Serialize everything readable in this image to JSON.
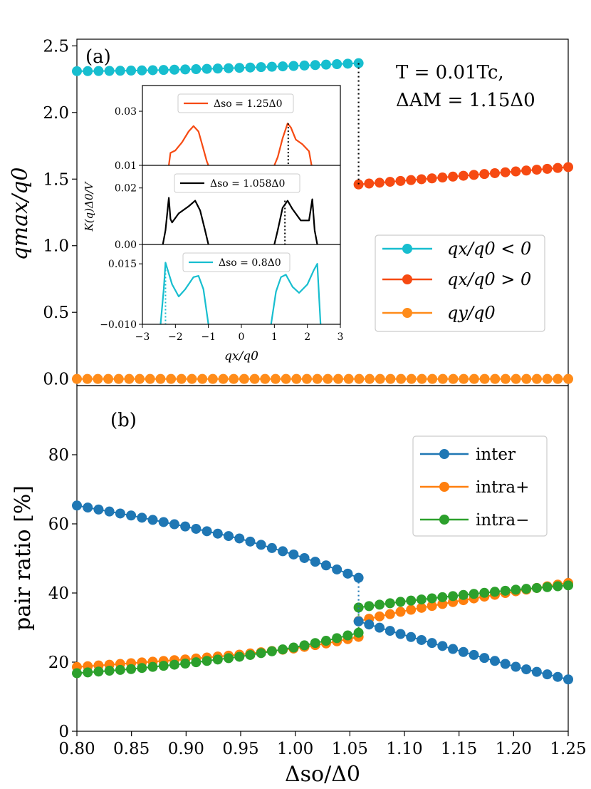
{
  "colors": {
    "cyan": "#17becf",
    "orange_red": "#f64a12",
    "orange": "#ff8c1a",
    "blue": "#1f77b4",
    "mpl_orange": "#ff7f0e",
    "green": "#2ca02c",
    "black": "#000000"
  },
  "figure": {
    "xlabel": "Δso/Δ0",
    "xticks": [
      "0.80",
      "0.85",
      "0.90",
      "0.95",
      "1.00",
      "1.05",
      "1.10",
      "1.15",
      "1.20",
      "1.25"
    ]
  },
  "chart_data": [
    {
      "panel": "(a)",
      "type": "scatter",
      "ylabel": "qmax/q0",
      "xlim": [
        0.8,
        1.25
      ],
      "ylim": [
        -0.05,
        2.55
      ],
      "yticks": [
        "0.0",
        "0.5",
        "1.0",
        "1.5",
        "2.0",
        "2.5"
      ],
      "annotation_line1": "T = 0.01Tc,",
      "annotation_line2": "ΔAM = 1.15Δ0",
      "legend_position": "right",
      "series": [
        {
          "name": "qx/q0 < 0",
          "color": "cyan",
          "x_range": [
            0.8,
            1.058
          ],
          "y_start": 2.31,
          "y_end": 2.37
        },
        {
          "name": "qx/q0 > 0",
          "color": "orange_red",
          "x_range": [
            1.058,
            1.25
          ],
          "y_start": 1.46,
          "y_end": 1.59
        },
        {
          "name": "qy/q0",
          "color": "orange",
          "x_range": [
            0.8,
            1.25
          ],
          "y_start": 0.0,
          "y_end": 0.0
        }
      ],
      "jump": {
        "x": 1.058,
        "y_from": 2.37,
        "y_to": 1.46
      }
    },
    {
      "panel": "(b)",
      "type": "scatter",
      "ylabel": "pair ratio [%]",
      "xlim": [
        0.8,
        1.25
      ],
      "ylim": [
        0,
        100
      ],
      "yticks": [
        "0",
        "20",
        "40",
        "60",
        "80"
      ],
      "legend_position": "upper right",
      "series": [
        {
          "name": "inter",
          "color": "blue",
          "points_left": [
            [
              0.8,
              65.3
            ],
            [
              0.85,
              62.4
            ],
            [
              0.9,
              59.2
            ],
            [
              0.95,
              55.7
            ],
            [
              1.0,
              51.0
            ],
            [
              1.03,
              47.8
            ],
            [
              1.058,
              44.4
            ]
          ],
          "points_right": [
            [
              1.058,
              31.8
            ],
            [
              1.1,
              27.8
            ],
            [
              1.15,
              23.3
            ],
            [
              1.2,
              18.8
            ],
            [
              1.25,
              15.0
            ]
          ]
        },
        {
          "name": "intra+",
          "color": "mpl_orange",
          "points_left": [
            [
              0.8,
              18.6
            ],
            [
              0.85,
              19.7
            ],
            [
              0.9,
              20.8
            ],
            [
              0.95,
              22.2
            ],
            [
              1.0,
              24.0
            ],
            [
              1.03,
              25.5
            ],
            [
              1.058,
              27.3
            ]
          ],
          "points_right": [
            [
              1.058,
              31.9
            ],
            [
              1.1,
              34.8
            ],
            [
              1.15,
              37.7
            ],
            [
              1.2,
              40.4
            ],
            [
              1.25,
              42.9
            ]
          ]
        },
        {
          "name": "intra−",
          "color": "green",
          "points_left": [
            [
              0.8,
              16.8
            ],
            [
              0.85,
              18.0
            ],
            [
              0.9,
              19.6
            ],
            [
              0.95,
              21.6
            ],
            [
              1.0,
              24.3
            ],
            [
              1.03,
              26.3
            ],
            [
              1.058,
              28.5
            ]
          ],
          "points_right": [
            [
              1.058,
              35.8
            ],
            [
              1.1,
              37.6
            ],
            [
              1.15,
              39.3
            ],
            [
              1.2,
              40.9
            ],
            [
              1.25,
              42.2
            ]
          ]
        }
      ]
    },
    {
      "panel": "inset",
      "type": "line",
      "xlabel": "qx/q0",
      "ylabel": "K(q)Δ0/V",
      "xlim": [
        -3,
        3
      ],
      "xticks": [
        "−3",
        "−2",
        "−1",
        "0",
        "1",
        "2",
        "3"
      ],
      "subplots": [
        {
          "legend": "Δso = 1.25Δ0",
          "color": "orange_red",
          "ylim": [
            0.01,
            0.0395
          ],
          "yticks": [
            "0.03",
            "0.01"
          ],
          "ytick_values": [
            0.03,
            0.01
          ],
          "curve_left": [
            [
              -2.2,
              0.01
            ],
            [
              -2.15,
              0.0146
            ],
            [
              -2.0,
              0.0155
            ],
            [
              -1.8,
              0.0185
            ],
            [
              -1.6,
              0.0225
            ],
            [
              -1.45,
              0.0245
            ],
            [
              -1.3,
              0.0225
            ],
            [
              -1.15,
              0.016
            ],
            [
              -1.05,
              0.0115
            ],
            [
              -1.0,
              0.01
            ]
          ],
          "curve_right": [
            [
              1.0,
              0.01
            ],
            [
              1.1,
              0.013
            ],
            [
              1.25,
              0.02
            ],
            [
              1.4,
              0.0255
            ],
            [
              1.5,
              0.024
            ],
            [
              1.65,
              0.0195
            ],
            [
              1.85,
              0.0178
            ],
            [
              2.05,
              0.0152
            ],
            [
              2.12,
              0.0105
            ],
            [
              2.13,
              0.01
            ]
          ],
          "marker_x": 1.42,
          "marker_y": 0.0255
        },
        {
          "legend": "Δso = 1.058Δ0",
          "color": "black",
          "ylim": [
            0.0,
            0.028
          ],
          "yticks": [
            "0.02",
            "0.00"
          ],
          "ytick_values": [
            0.02,
            0.0
          ],
          "curve_left": [
            [
              -2.38,
              0.0
            ],
            [
              -2.3,
              0.005
            ],
            [
              -2.2,
              0.0165
            ],
            [
              -2.15,
              0.009
            ],
            [
              -2.1,
              0.0078
            ],
            [
              -1.9,
              0.011
            ],
            [
              -1.6,
              0.0135
            ],
            [
              -1.4,
              0.0155
            ],
            [
              -1.25,
              0.012
            ],
            [
              -1.1,
              0.005
            ],
            [
              -1.0,
              0.0
            ]
          ],
          "curve_right": [
            [
              1.0,
              0.0
            ],
            [
              1.1,
              0.005
            ],
            [
              1.25,
              0.013
            ],
            [
              1.4,
              0.0155
            ],
            [
              1.55,
              0.0125
            ],
            [
              1.8,
              0.0085
            ],
            [
              2.05,
              0.0085
            ],
            [
              2.15,
              0.016
            ],
            [
              2.22,
              0.005
            ],
            [
              2.3,
              0.0
            ]
          ],
          "marker_x": 1.32,
          "marker_y": 0.0155
        },
        {
          "legend": "Δso = 0.8Δ0",
          "color": "cyan",
          "ylim": [
            -0.01,
            0.023
          ],
          "yticks": [
            "0.015",
            "−0.010"
          ],
          "ytick_values": [
            0.015,
            -0.01
          ],
          "curve_left": [
            [
              -2.45,
              -0.01
            ],
            [
              -2.35,
              0.005
            ],
            [
              -2.3,
              0.0155
            ],
            [
              -2.1,
              0.0065
            ],
            [
              -1.9,
              0.0015
            ],
            [
              -1.7,
              0.0045
            ],
            [
              -1.45,
              0.0095
            ],
            [
              -1.3,
              0.01
            ],
            [
              -1.15,
              0.0045
            ],
            [
              -1.0,
              -0.01
            ]
          ],
          "curve_right": [
            [
              0.9,
              -0.01
            ],
            [
              1.05,
              0.0035
            ],
            [
              1.2,
              0.0095
            ],
            [
              1.35,
              0.0105
            ],
            [
              1.55,
              0.0055
            ],
            [
              1.75,
              0.003
            ],
            [
              2.0,
              0.0065
            ],
            [
              2.2,
              0.0125
            ],
            [
              2.3,
              0.015
            ],
            [
              2.4,
              -0.01
            ]
          ],
          "marker_x": -2.3,
          "marker_y": 0.0155
        }
      ]
    }
  ]
}
